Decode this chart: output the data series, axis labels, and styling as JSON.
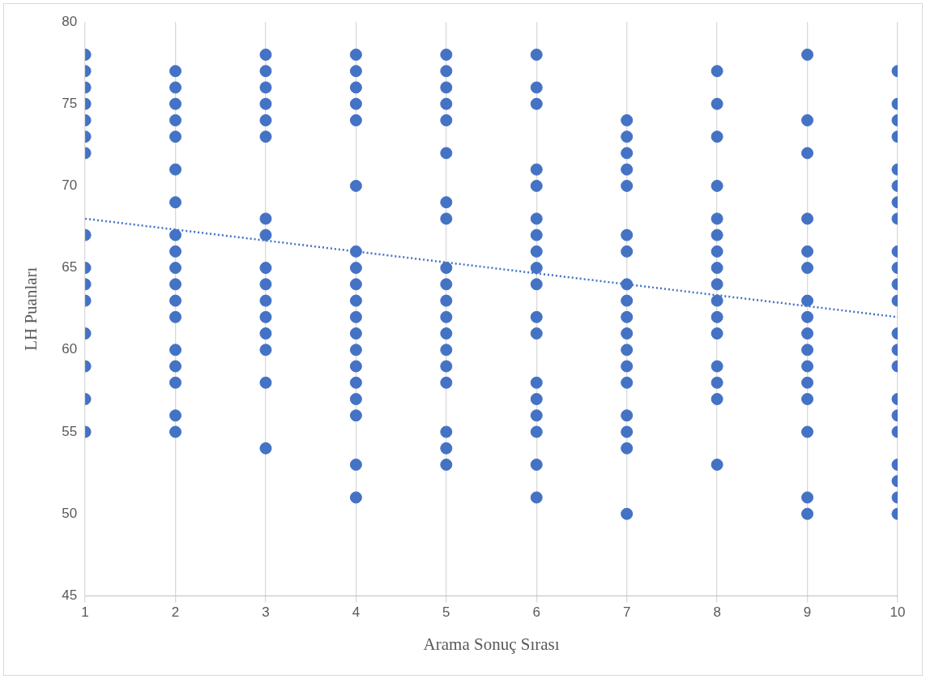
{
  "chart_data": {
    "type": "scatter",
    "xlabel": "Arama Sonuç Sırası",
    "ylabel": "LH Puanları",
    "xlim": [
      1,
      10
    ],
    "xticks": [
      1,
      2,
      3,
      4,
      5,
      6,
      7,
      8,
      9,
      10
    ],
    "ylim": [
      45,
      80
    ],
    "yticks": [
      45,
      50,
      55,
      60,
      65,
      70,
      75,
      80
    ],
    "grid": "x",
    "marker": "circle",
    "legend": false,
    "series": [
      {
        "color": "#4472c4",
        "x": [
          1,
          1,
          1,
          1,
          1,
          1,
          1,
          1,
          1,
          1,
          1,
          1,
          1,
          1,
          1,
          2,
          2,
          2,
          2,
          2,
          2,
          2,
          2,
          2,
          2,
          2,
          2,
          2,
          2,
          2,
          2,
          2,
          2,
          3,
          3,
          3,
          3,
          3,
          3,
          3,
          3,
          3,
          3,
          3,
          3,
          3,
          3,
          3,
          3,
          4,
          4,
          4,
          4,
          4,
          4,
          4,
          4,
          4,
          4,
          4,
          4,
          4,
          4,
          4,
          4,
          4,
          4,
          4,
          5,
          5,
          5,
          5,
          5,
          5,
          5,
          5,
          5,
          5,
          5,
          5,
          5,
          5,
          5,
          5,
          5,
          5,
          5,
          6,
          6,
          6,
          6,
          6,
          6,
          6,
          6,
          6,
          6,
          6,
          6,
          6,
          6,
          6,
          6,
          6,
          6,
          7,
          7,
          7,
          7,
          7,
          7,
          7,
          7,
          7,
          7,
          7,
          7,
          7,
          7,
          7,
          7,
          7,
          7,
          8,
          8,
          8,
          8,
          8,
          8,
          8,
          8,
          8,
          8,
          8,
          8,
          8,
          8,
          8,
          8,
          9,
          9,
          9,
          9,
          9,
          9,
          9,
          9,
          9,
          9,
          9,
          9,
          9,
          9,
          9,
          9,
          10,
          10,
          10,
          10,
          10,
          10,
          10,
          10,
          10,
          10,
          10,
          10,
          10,
          10,
          10,
          10,
          10,
          10,
          10,
          10,
          10,
          10
        ],
        "values": [
          78,
          77,
          76,
          75,
          74,
          73,
          72,
          67,
          65,
          64,
          63,
          61,
          59,
          57,
          55,
          77,
          76,
          75,
          74,
          73,
          71,
          69,
          67,
          66,
          65,
          64,
          63,
          62,
          60,
          59,
          58,
          56,
          55,
          78,
          77,
          76,
          75,
          74,
          73,
          68,
          67,
          65,
          64,
          63,
          62,
          61,
          60,
          58,
          54,
          78,
          77,
          76,
          75,
          74,
          70,
          66,
          65,
          64,
          63,
          62,
          61,
          60,
          59,
          58,
          57,
          56,
          53,
          51,
          78,
          77,
          76,
          75,
          74,
          72,
          69,
          68,
          65,
          64,
          63,
          62,
          61,
          60,
          59,
          58,
          55,
          54,
          53,
          78,
          76,
          75,
          71,
          70,
          68,
          67,
          66,
          65,
          64,
          62,
          61,
          58,
          57,
          56,
          55,
          53,
          51,
          74,
          73,
          72,
          71,
          70,
          67,
          66,
          64,
          63,
          62,
          61,
          60,
          59,
          58,
          56,
          55,
          54,
          50,
          77,
          75,
          73,
          70,
          68,
          67,
          66,
          65,
          64,
          63,
          62,
          61,
          59,
          58,
          57,
          53,
          78,
          74,
          72,
          68,
          66,
          65,
          63,
          62,
          61,
          60,
          59,
          58,
          57,
          55,
          51,
          50,
          77,
          75,
          74,
          73,
          71,
          70,
          69,
          68,
          66,
          65,
          64,
          63,
          61,
          60,
          59,
          57,
          56,
          55,
          53,
          52,
          51,
          50
        ]
      },
      {
        "type": "line",
        "color": "#4472c4",
        "x": [
          1,
          10
        ],
        "values": [
          68,
          62
        ],
        "line_style": "dotted",
        "marker": "none"
      }
    ]
  }
}
